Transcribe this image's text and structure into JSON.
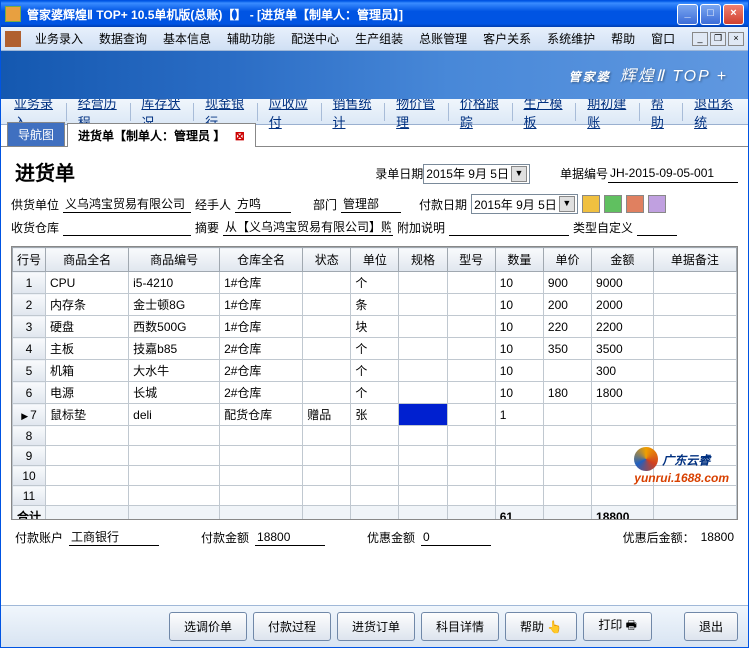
{
  "window": {
    "title": "管家婆辉煌Ⅱ TOP+ 10.5单机版(总账)【】 - [进货单【制单人：管理员】]"
  },
  "menus": [
    "业务录入",
    "数据查询",
    "基本信息",
    "辅助功能",
    "配送中心",
    "生产组装",
    "总账管理",
    "客户关系",
    "系统维护",
    "帮助",
    "窗口"
  ],
  "banner": {
    "main": "管家婆",
    "sub": "辉煌Ⅱ TOP +"
  },
  "toolbar": [
    "业务录入",
    "经营历程",
    "库存状况",
    "现金银行",
    "应收应付",
    "销售统计",
    "物价管理",
    "价格跟踪",
    "生产模板",
    "期初建账",
    "帮助",
    "退出系统"
  ],
  "tabs": {
    "nav": "导航图",
    "active": "进货单【制单人：管理员 】"
  },
  "doc": {
    "title": "进货单",
    "entry_date_lbl": "录单日期",
    "entry_date": "2015年 9月 5日",
    "doc_no_lbl": "单据编号",
    "doc_no": "JH-2015-09-05-001",
    "supplier_lbl": "供货单位",
    "supplier": "义乌鸿宝贸易有限公司",
    "handler_lbl": "经手人",
    "handler": "方鸣",
    "dept_lbl": "部门",
    "dept": "管理部",
    "pay_date_lbl": "付款日期",
    "pay_date": "2015年 9月 5日",
    "recv_wh_lbl": "收货仓库",
    "recv_wh": "",
    "summary_lbl": "摘要",
    "summary": "从【义乌鸿宝贸易有限公司】购进",
    "addl_lbl": "附加说明",
    "addl": "",
    "type_custom_lbl": "类型自定义",
    "pay_acct_lbl": "付款账户",
    "pay_acct": "工商银行",
    "pay_amt_lbl": "付款金额",
    "pay_amt": "18800",
    "disc_amt_lbl": "优惠金额",
    "disc_amt": "0",
    "after_disc_lbl": "优惠后金额：",
    "after_disc": "18800"
  },
  "grid": {
    "columns": [
      "行号",
      "商品全名",
      "商品编号",
      "仓库全名",
      "状态",
      "单位",
      "规格",
      "型号",
      "数量",
      "单价",
      "金额",
      "单据备注"
    ],
    "rows": [
      {
        "n": "1",
        "name": "CPU",
        "code": "i5-4210",
        "wh": "1#仓库",
        "st": "",
        "unit": "个",
        "spec": "",
        "model": "",
        "qty": "10",
        "price": "900",
        "amt": "9000",
        "note": ""
      },
      {
        "n": "2",
        "name": "内存条",
        "code": "金士顿8G",
        "wh": "1#仓库",
        "st": "",
        "unit": "条",
        "spec": "",
        "model": "",
        "qty": "10",
        "price": "200",
        "amt": "2000",
        "note": ""
      },
      {
        "n": "3",
        "name": "硬盘",
        "code": "西数500G",
        "wh": "1#仓库",
        "st": "",
        "unit": "块",
        "spec": "",
        "model": "",
        "qty": "10",
        "price": "220",
        "amt": "2200",
        "note": ""
      },
      {
        "n": "4",
        "name": "主板",
        "code": "技嘉b85",
        "wh": "2#仓库",
        "st": "",
        "unit": "个",
        "spec": "",
        "model": "",
        "qty": "10",
        "price": "350",
        "amt": "3500",
        "note": ""
      },
      {
        "n": "5",
        "name": "机箱",
        "code": "大水牛",
        "wh": "2#仓库",
        "st": "",
        "unit": "个",
        "spec": "",
        "model": "",
        "qty": "10",
        "price": "",
        "amt": "300",
        "note": ""
      },
      {
        "n": "6",
        "name": "电源",
        "code": "长城",
        "wh": "2#仓库",
        "st": "",
        "unit": "个",
        "spec": "",
        "model": "",
        "qty": "10",
        "price": "180",
        "amt": "1800",
        "note": ""
      },
      {
        "n": "7",
        "name": "鼠标垫",
        "code": "deli",
        "wh": "配货仓库",
        "st": "赠品",
        "unit": "张",
        "spec": "",
        "model": "",
        "qty": "1",
        "price": "",
        "amt": "",
        "note": "",
        "current": true,
        "hlcol": 6
      },
      {
        "n": "8"
      },
      {
        "n": "9"
      },
      {
        "n": "10"
      },
      {
        "n": "11"
      }
    ],
    "total_lbl": "合计",
    "total_qty": "61",
    "total_amt": "18800"
  },
  "buttons": [
    "选调价单",
    "付款过程",
    "进货订单",
    "科目详情",
    "帮助 👆",
    "打印 🖶",
    "退出"
  ],
  "watermark": {
    "text": "广东云睿",
    "url": "yunrui.1688.com"
  }
}
